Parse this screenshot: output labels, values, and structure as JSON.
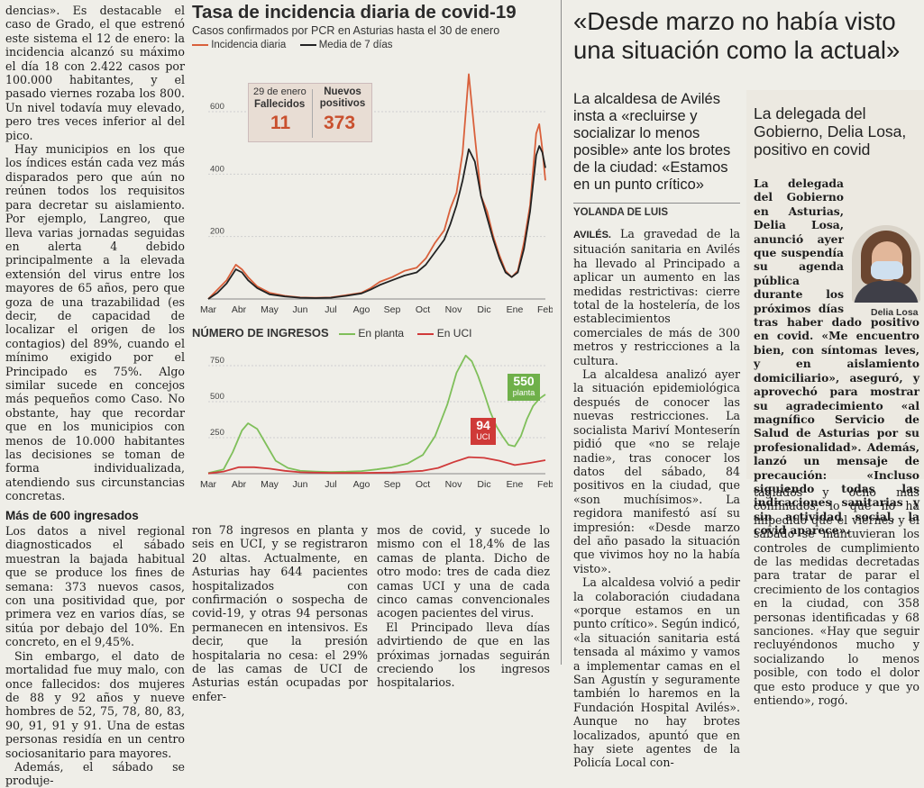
{
  "col1": {
    "p_top": "dencias». Es destacable el caso de Grado, el que estrenó este sistema el 12 de enero: la incidencia alcanzó su máximo el día 18 con 2.422 casos por 100.000 habitantes, y el pasado viernes rozaba los 800. Un nivel todavía muy elevado, pero tres veces inferior al del pico.",
    "p2": "Hay municipios en los que los índices están cada vez más disparados pero que aún no reúnen todos los requisitos para decretar su aislamiento. Por ejemplo, Langreo, que lleva varias jornadas seguidas en alerta 4 debido principalmente a la elevada extensión del virus entre los mayores de 65 años, pero que goza de una trazabilidad (es decir, de capacidad de localizar el origen de los contagios) del 89%, cuando el mínimo exigido por el Principado es 75%. Algo similar sucede en concejos más pequeños como Caso. No obstante, hay que recordar que en los municipios con menos de 10.000 habitantes las decisiones se toman de forma individualizada, atendiendo sus circunstancias concretas.",
    "subhead": "Más de 600 ingresados",
    "p3": "Los datos a nivel regional diagnosticados el sábado muestran la bajada habitual que se produce los fines de semana: 373 nuevos casos, con una positividad que, por primera vez en varios días, se sitúa por debajo del 10%. En concreto, en el 9,45%.",
    "p4": "Sin embargo, el dato de mortalidad fue muy malo, con once fallecidos: dos mujeres de 88 y 92 años y nueve hombres de 52, 75, 78, 80, 83, 90, 91, 91 y 91. Una de estas personas residía en un centro sociosanitario para mayores.",
    "p5": "Además, el sábado se produje-"
  },
  "chart1": {
    "title": "Tasa de incidencia diaria de covid-19",
    "subtitle": "Casos confirmados por PCR en Asturias hasta el 30 de enero",
    "legend_daily": "Incidencia diaria",
    "legend_avg": "Media de 7 días",
    "box_date": "29 de enero",
    "box_deaths_label": "Fallecidos",
    "box_deaths_value": "11",
    "box_new_label": "Nuevos positivos",
    "box_new_value": "373"
  },
  "chart2": {
    "title": "NÚMERO DE INGRESOS",
    "legend_ward": "En planta",
    "legend_icu": "En UCI",
    "badge_ward_value": "550",
    "badge_ward_label": "planta",
    "badge_icu_value": "94",
    "badge_icu_label": "UCI"
  },
  "chart_data": [
    {
      "type": "line",
      "title": "Tasa de incidencia diaria de covid-19",
      "subtitle": "Casos confirmados por PCR en Asturias hasta el 30 de enero",
      "x_ticks": [
        "Mar",
        "Abr",
        "May",
        "Jun",
        "Jul",
        "Ago",
        "Sep",
        "Oct",
        "Nov",
        "Dic",
        "Ene",
        "Feb"
      ],
      "y_ticks": [
        200,
        400,
        600
      ],
      "ylim": [
        0,
        750
      ],
      "grid": true,
      "legend_position": "top-left",
      "series": [
        {
          "name": "Incidencia diaria",
          "color": "#d9603b",
          "x": [
            0,
            0.3,
            0.6,
            0.9,
            1.1,
            1.3,
            1.6,
            2,
            2.5,
            3,
            3.5,
            4,
            4.5,
            5,
            5.3,
            5.6,
            6,
            6.4,
            6.8,
            7.1,
            7.4,
            7.7,
            7.9,
            8.1,
            8.3,
            8.5,
            8.7,
            8.9,
            9.1,
            9.3,
            9.5,
            9.7,
            9.9,
            10.1,
            10.3,
            10.5,
            10.7,
            10.8,
            10.9,
            11.0
          ],
          "values": [
            0,
            30,
            60,
            110,
            95,
            70,
            40,
            20,
            10,
            5,
            4,
            5,
            12,
            20,
            35,
            55,
            70,
            90,
            100,
            130,
            180,
            220,
            290,
            340,
            470,
            720,
            520,
            330,
            280,
            200,
            140,
            90,
            70,
            90,
            180,
            300,
            530,
            560,
            480,
            380
          ]
        },
        {
          "name": "Media de 7 días",
          "color": "#222222",
          "x": [
            0,
            0.3,
            0.6,
            0.9,
            1.1,
            1.3,
            1.6,
            2,
            2.5,
            3,
            3.5,
            4,
            4.5,
            5,
            5.3,
            5.6,
            6,
            6.4,
            6.8,
            7.1,
            7.4,
            7.7,
            7.9,
            8.1,
            8.3,
            8.5,
            8.7,
            8.9,
            9.1,
            9.3,
            9.5,
            9.7,
            9.9,
            10.1,
            10.3,
            10.5,
            10.7,
            10.8,
            10.9,
            11.0
          ],
          "values": [
            0,
            20,
            50,
            95,
            85,
            60,
            35,
            15,
            8,
            4,
            3,
            4,
            10,
            18,
            30,
            45,
            60,
            75,
            85,
            110,
            150,
            190,
            240,
            300,
            380,
            480,
            440,
            330,
            260,
            190,
            130,
            85,
            70,
            85,
            160,
            280,
            460,
            490,
            470,
            420
          ]
        }
      ]
    },
    {
      "type": "line",
      "title": "NÚMERO DE INGRESOS",
      "x_ticks": [
        "Mar",
        "Abr",
        "May",
        "Jun",
        "Jul",
        "Ago",
        "Sep",
        "Oct",
        "Nov",
        "Dic",
        "Ene",
        "Feb"
      ],
      "y_ticks": [
        250,
        500,
        750
      ],
      "ylim": [
        0,
        850
      ],
      "grid": true,
      "legend_position": "top",
      "series": [
        {
          "name": "En planta",
          "color": "#7fbf5a",
          "x": [
            0,
            0.5,
            0.8,
            1.1,
            1.3,
            1.6,
            1.9,
            2.2,
            2.6,
            3,
            3.5,
            4,
            4.5,
            5,
            5.5,
            6,
            6.5,
            7,
            7.4,
            7.8,
            8.1,
            8.4,
            8.6,
            8.8,
            9.0,
            9.2,
            9.4,
            9.6,
            9.8,
            10.0,
            10.2,
            10.4,
            10.6,
            10.8,
            11.0
          ],
          "values": [
            5,
            30,
            150,
            300,
            350,
            310,
            200,
            90,
            40,
            20,
            15,
            12,
            14,
            18,
            30,
            45,
            70,
            130,
            260,
            480,
            700,
            820,
            780,
            680,
            560,
            430,
            330,
            260,
            200,
            190,
            260,
            380,
            470,
            520,
            550
          ]
        },
        {
          "name": "En UCI",
          "color": "#d03a3a",
          "x": [
            0,
            0.5,
            1,
            1.5,
            2,
            2.5,
            3,
            4,
            5,
            6,
            7,
            7.5,
            8,
            8.5,
            9,
            9.5,
            10,
            10.5,
            11.0
          ],
          "values": [
            2,
            15,
            45,
            45,
            35,
            20,
            10,
            5,
            5,
            8,
            20,
            40,
            80,
            115,
            110,
            90,
            60,
            75,
            94
          ]
        }
      ]
    }
  ],
  "col2": {
    "p1": "ron 78 ingresos en planta y seis en UCI, y se registraron 20 altas. Actualmente, en Asturias hay 644 pacientes hospitalizados con confirmación o sospecha de covid-19, y otras 94 personas permanecen en intensivos. Es decir, que la presión hospitalaria no cesa: el 29% de las camas de UCI de Asturias están ocupadas por enfer-"
  },
  "col3": {
    "p1": "mos de covid, y sucede lo mismo con el 18,4% de las camas de planta. Dicho de otro modo: tres de cada diez camas UCI y una de cada cinco camas convencionales acogen pacientes del virus.",
    "p2": "El Principado lleva días advirtiendo de que en las próximas jornadas seguirán creciendo los ingresos hospitalarios."
  },
  "aviles": {
    "headline": "«Desde marzo no había visto una situación como la actual»",
    "deck": "La alcaldesa de Avilés insta a «recluirse y socializar lo menos posible» ante los brotes de la ciudad: «Estamos en un punto crítico»",
    "byline": "YOLANDA DE LUIS",
    "dateline": "AVILÉS.",
    "p1": " La gravedad de la situación sanitaria en Avilés ha llevado al Principado a aplicar un aumento en las medidas restrictivas: cierre total de la hostelería, de los establecimientos comerciales de más de 300 metros y restricciones a la cultura.",
    "p2": "La alcaldesa analizó ayer la situación epidemiológica después de conocer las nuevas restricciones. La socialista Mariví Monteserín pidió que «no se relaje nadie», tras conocer los datos del sábado, 84 positivos en la ciudad, que «son muchísimos». La regidora manifestó así su impresión: «Desde marzo del año pasado la situación que vivimos hoy no la había visto».",
    "p3": "La alcaldesa volvió a pedir la colaboración ciudadana «porque estamos en un punto crítico». Según indicó, «la situación sanitaria está tensada al máximo y vamos a implementar camas en el San Agustín y seguramente también lo haremos en la Fundación Hospital Avilés». Aunque no hay brotes localizados, apuntó que en hay siete agentes de la Policía Local con-"
  },
  "losa": {
    "headline": "La delegada del Gobierno, Delia Losa, positivo en covid",
    "p1": "La delegada del Gobierno en Asturias, Delia Losa, anunció ayer que suspendía su agenda pública durante los próximos días tras haber dado positivo en covid. «Me encuentro bien, con síntomas leves, y en aislamiento domiciliario», aseguró, y aprovechó para mostrar su agradecimiento «al magnífico Servicio de Salud de Asturias por su profesionalidad». Además, lanzó un mensaje de precaución: «Incluso siguiendo todas las indicaciones sanitarias y sin actividad social, la covid aparece».",
    "photo_caption": "Delia Losa",
    "p2": "tagiados y ocho más confinados, lo que no ha impedido que el viernes y el sábado se mantuvieran los controles de cumplimiento de las medidas decretadas para tratar de parar el crecimiento de los contagios en la ciudad, con 358 personas identificadas y 68 sanciones. «Hay que seguir recluyéndonos mucho y socializando lo menos posible, con todo el dolor que esto produce y que yo entiendo», rogó."
  }
}
